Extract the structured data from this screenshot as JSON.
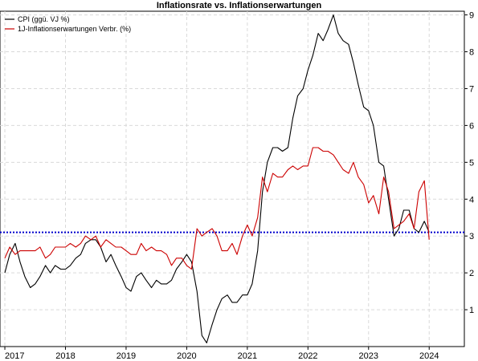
{
  "chart_data": {
    "type": "line",
    "title": "Inflationsrate vs. Inflationserwartungen",
    "xlabel": "",
    "ylabel": "",
    "xlim": [
      2016.92,
      2024.58
    ],
    "ylim": [
      0.0,
      9.1
    ],
    "x_ticks": [
      2017,
      2018,
      2019,
      2020,
      2021,
      2022,
      2023,
      2024
    ],
    "x_tick_labels": [
      "2017",
      "2018",
      "2019",
      "2020",
      "2021",
      "2022",
      "2023",
      "2024"
    ],
    "y_ticks": [
      1,
      2,
      3,
      4,
      5,
      6,
      7,
      8,
      9
    ],
    "y_tick_labels": [
      "1",
      "2",
      "3",
      "4",
      "5",
      "6",
      "7",
      "8",
      "9"
    ],
    "y_axis_side": "right",
    "grid": true,
    "legend_position": "top-left",
    "reference_line": {
      "y": 3.1,
      "color": "#0000cc",
      "style": "dotted"
    },
    "series": [
      {
        "name": "CPI (ggü. VJ %)",
        "color": "#000000",
        "x": [
          2017.0,
          2017.08,
          2017.17,
          2017.25,
          2017.33,
          2017.42,
          2017.5,
          2017.58,
          2017.67,
          2017.75,
          2017.83,
          2017.92,
          2018.0,
          2018.08,
          2018.17,
          2018.25,
          2018.33,
          2018.42,
          2018.5,
          2018.58,
          2018.67,
          2018.75,
          2018.83,
          2018.92,
          2019.0,
          2019.08,
          2019.17,
          2019.25,
          2019.33,
          2019.42,
          2019.5,
          2019.58,
          2019.67,
          2019.75,
          2019.83,
          2019.92,
          2020.0,
          2020.08,
          2020.17,
          2020.25,
          2020.33,
          2020.42,
          2020.5,
          2020.58,
          2020.67,
          2020.75,
          2020.83,
          2020.92,
          2021.0,
          2021.08,
          2021.17,
          2021.25,
          2021.33,
          2021.42,
          2021.5,
          2021.58,
          2021.67,
          2021.75,
          2021.83,
          2021.92,
          2022.0,
          2022.08,
          2022.17,
          2022.25,
          2022.33,
          2022.42,
          2022.5,
          2022.58,
          2022.67,
          2022.75,
          2022.83,
          2022.92,
          2023.0,
          2023.08,
          2023.17,
          2023.25,
          2023.33,
          2023.42,
          2023.5,
          2023.58,
          2023.67,
          2023.75,
          2023.83,
          2023.92,
          2024.0
        ],
        "values": [
          2.0,
          2.5,
          2.8,
          2.3,
          1.9,
          1.6,
          1.7,
          1.9,
          2.2,
          2.0,
          2.2,
          2.1,
          2.1,
          2.2,
          2.4,
          2.5,
          2.8,
          2.9,
          2.9,
          2.7,
          2.3,
          2.5,
          2.2,
          1.9,
          1.6,
          1.5,
          1.9,
          2.0,
          1.8,
          1.6,
          1.8,
          1.7,
          1.7,
          1.8,
          2.1,
          2.3,
          2.5,
          2.3,
          1.5,
          0.3,
          0.1,
          0.6,
          1.0,
          1.3,
          1.4,
          1.2,
          1.2,
          1.4,
          1.4,
          1.7,
          2.6,
          4.2,
          5.0,
          5.4,
          5.4,
          5.3,
          5.4,
          6.2,
          6.8,
          7.0,
          7.5,
          7.9,
          8.5,
          8.3,
          8.6,
          9.0,
          8.5,
          8.3,
          8.2,
          7.7,
          7.1,
          6.5,
          6.4,
          6.0,
          5.0,
          4.9,
          4.0,
          3.0,
          3.2,
          3.7,
          3.7,
          3.2,
          3.1,
          3.4,
          3.1
        ],
        "source_note": "end-of-month values; last point ~2024.0"
      },
      {
        "name": "1J-Inflationserwartungen Verbr. (%)",
        "color": "#cc0000",
        "x": [
          2017.0,
          2017.08,
          2017.17,
          2017.25,
          2017.33,
          2017.42,
          2017.5,
          2017.58,
          2017.67,
          2017.75,
          2017.83,
          2017.92,
          2018.0,
          2018.08,
          2018.17,
          2018.25,
          2018.33,
          2018.42,
          2018.5,
          2018.58,
          2018.67,
          2018.75,
          2018.83,
          2018.92,
          2019.0,
          2019.08,
          2019.17,
          2019.25,
          2019.33,
          2019.42,
          2019.5,
          2019.58,
          2019.67,
          2019.75,
          2019.83,
          2019.92,
          2020.0,
          2020.08,
          2020.17,
          2020.25,
          2020.33,
          2020.42,
          2020.5,
          2020.58,
          2020.67,
          2020.75,
          2020.83,
          2020.92,
          2021.0,
          2021.08,
          2021.17,
          2021.25,
          2021.33,
          2021.42,
          2021.5,
          2021.58,
          2021.67,
          2021.75,
          2021.83,
          2021.92,
          2022.0,
          2022.08,
          2022.17,
          2022.25,
          2022.33,
          2022.42,
          2022.5,
          2022.58,
          2022.67,
          2022.75,
          2022.83,
          2022.92,
          2023.0,
          2023.08,
          2023.17,
          2023.25,
          2023.33,
          2023.42,
          2023.5,
          2023.58,
          2023.67,
          2023.75,
          2023.83,
          2023.92,
          2024.0
        ],
        "values": [
          2.4,
          2.7,
          2.5,
          2.6,
          2.6,
          2.6,
          2.6,
          2.7,
          2.4,
          2.5,
          2.7,
          2.7,
          2.7,
          2.8,
          2.7,
          2.8,
          3.0,
          2.9,
          3.0,
          2.7,
          2.9,
          2.8,
          2.7,
          2.7,
          2.6,
          2.5,
          2.5,
          2.8,
          2.6,
          2.7,
          2.6,
          2.6,
          2.5,
          2.2,
          2.4,
          2.4,
          2.2,
          2.1,
          3.2,
          3.0,
          3.1,
          3.2,
          3.0,
          2.6,
          2.6,
          2.8,
          2.5,
          3.0,
          3.3,
          3.0,
          3.5,
          4.6,
          4.2,
          4.7,
          4.6,
          4.6,
          4.8,
          4.9,
          4.8,
          4.9,
          4.9,
          5.4,
          5.4,
          5.3,
          5.3,
          5.2,
          5.0,
          4.8,
          4.7,
          5.0,
          4.6,
          4.4,
          3.9,
          4.1,
          3.6,
          4.6,
          4.2,
          3.2,
          3.3,
          3.4,
          3.6,
          3.2,
          4.2,
          4.5,
          2.9
        ]
      }
    ]
  }
}
